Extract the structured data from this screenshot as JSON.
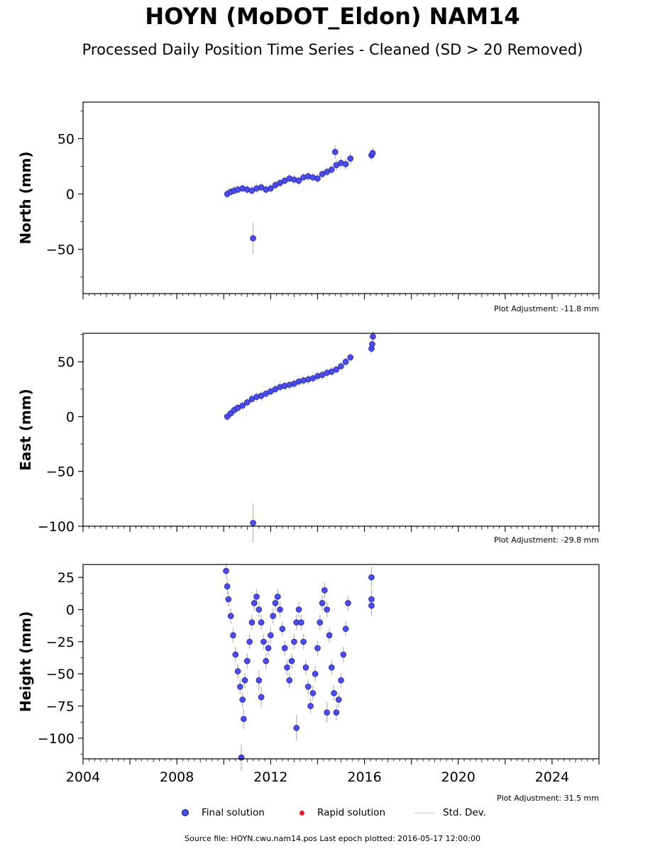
{
  "title": "HOYN (MoDOT_Eldon) NAM14",
  "subtitle": "Processed Daily Position Time Series - Cleaned (SD > 20 Removed)",
  "legend": {
    "final": "Final solution",
    "rapid": "Rapid solution",
    "std": "Std. Dev."
  },
  "footer": "Source file: HOYN.cwu.nam14.pos  Last epoch plotted: 2016-05-17 12:00:00",
  "colors": {
    "final": "#4b4bf2",
    "final_edge": "#1a1a5a",
    "rapid": "#e11d1d",
    "std": "#b5b5b5"
  },
  "chart_data": [
    {
      "type": "scatter",
      "ylabel": "North (mm)",
      "xlim": [
        2004,
        2026
      ],
      "ylim": [
        -90,
        83
      ],
      "yticks": [
        -50,
        0,
        50
      ],
      "ytick_labels": [
        "−50",
        "0",
        "50"
      ],
      "adjustment_label": "Plot Adjustment: -11.8 mm",
      "series": [
        {
          "name": "Final solution",
          "x": [
            2010.15,
            2010.3,
            2010.45,
            2010.6,
            2010.8,
            2011.0,
            2011.2,
            2011.4,
            2011.6,
            2011.8,
            2012.0,
            2012.2,
            2012.4,
            2012.6,
            2012.8,
            2013.0,
            2013.2,
            2013.4,
            2013.6,
            2013.8,
            2014.0,
            2014.2,
            2014.4,
            2014.6,
            2014.8,
            2015.0,
            2015.2,
            2015.4,
            2016.3,
            2016.35,
            2011.25,
            2014.75
          ],
          "y": [
            0,
            2,
            3,
            4,
            5,
            4,
            3,
            5,
            6,
            4,
            5,
            8,
            10,
            12,
            14,
            13,
            12,
            15,
            16,
            15,
            14,
            18,
            20,
            22,
            26,
            28,
            27,
            32,
            35,
            37,
            -40,
            38
          ],
          "err": [
            4,
            4,
            4,
            4,
            4,
            4,
            4,
            4,
            4,
            4,
            4,
            4,
            4,
            4,
            4,
            4,
            4,
            4,
            4,
            4,
            4,
            4,
            4,
            4,
            5,
            5,
            5,
            5,
            5,
            5,
            14,
            6
          ]
        }
      ]
    },
    {
      "type": "scatter",
      "ylabel": "East (mm)",
      "xlim": [
        2004,
        2026
      ],
      "ylim": [
        -100,
        76
      ],
      "yticks": [
        -100,
        -50,
        0,
        50
      ],
      "ytick_labels": [
        "−100",
        "−50",
        "0",
        "50"
      ],
      "adjustment_label": "Plot Adjustment: -29.8 mm",
      "series": [
        {
          "name": "Final solution",
          "x": [
            2010.15,
            2010.3,
            2010.45,
            2010.6,
            2010.8,
            2011.0,
            2011.2,
            2011.4,
            2011.6,
            2011.8,
            2012.0,
            2012.2,
            2012.4,
            2012.6,
            2012.8,
            2013.0,
            2013.2,
            2013.4,
            2013.6,
            2013.8,
            2014.0,
            2014.2,
            2014.4,
            2014.6,
            2014.8,
            2015.0,
            2015.2,
            2015.4,
            2016.3,
            2016.33,
            2016.36,
            2011.25
          ],
          "y": [
            0,
            3,
            6,
            8,
            10,
            13,
            16,
            18,
            19,
            21,
            23,
            25,
            27,
            28,
            29,
            30,
            32,
            33,
            34,
            35,
            37,
            38,
            40,
            41,
            43,
            46,
            50,
            54,
            62,
            66,
            73,
            -97
          ],
          "err": [
            4,
            4,
            4,
            4,
            4,
            4,
            4,
            4,
            4,
            4,
            4,
            4,
            4,
            4,
            4,
            4,
            4,
            4,
            4,
            4,
            4,
            4,
            4,
            4,
            4,
            4,
            4,
            4,
            5,
            5,
            5,
            18
          ]
        }
      ]
    },
    {
      "type": "scatter",
      "ylabel": "Height (mm)",
      "xlim": [
        2004,
        2026
      ],
      "ylim": [
        -116,
        35
      ],
      "yticks": [
        -100,
        -75,
        -50,
        -25,
        0,
        25
      ],
      "ytick_labels": [
        "−100",
        "−75",
        "−50",
        "−25",
        "0",
        "25"
      ],
      "xticks": [
        2004,
        2008,
        2012,
        2016,
        2020,
        2024
      ],
      "xtick_labels": [
        "2004",
        "2008",
        "2012",
        "2016",
        "2020",
        "2024"
      ],
      "adjustment_label": "Plot Adjustment: 31.5 mm",
      "series": [
        {
          "name": "Final solution",
          "x": [
            2010.1,
            2010.15,
            2010.2,
            2010.3,
            2010.4,
            2010.5,
            2010.6,
            2010.7,
            2010.8,
            2010.9,
            2011.0,
            2011.1,
            2011.2,
            2011.3,
            2011.4,
            2011.5,
            2011.6,
            2011.7,
            2011.8,
            2011.9,
            2012.0,
            2012.1,
            2012.2,
            2012.3,
            2012.4,
            2012.5,
            2012.6,
            2012.7,
            2012.8,
            2012.9,
            2013.0,
            2013.1,
            2013.2,
            2013.3,
            2013.4,
            2013.5,
            2013.6,
            2013.7,
            2013.8,
            2013.9,
            2014.0,
            2014.1,
            2014.2,
            2014.3,
            2014.4,
            2014.5,
            2014.6,
            2014.7,
            2014.8,
            2014.9,
            2015.0,
            2015.1,
            2015.2,
            2015.3,
            2010.75,
            2010.85,
            2011.5,
            2011.6,
            2013.1,
            2014.4,
            2016.3,
            2016.3,
            2016.3
          ],
          "y": [
            30,
            18,
            8,
            -5,
            -20,
            -35,
            -48,
            -60,
            -70,
            -55,
            -40,
            -25,
            -10,
            5,
            10,
            0,
            -10,
            -25,
            -40,
            -30,
            -20,
            -5,
            5,
            10,
            0,
            -15,
            -30,
            -45,
            -55,
            -40,
            -25,
            -10,
            0,
            -10,
            -25,
            -45,
            -60,
            -75,
            -65,
            -50,
            -30,
            -10,
            5,
            15,
            0,
            -20,
            -45,
            -65,
            -80,
            -70,
            -55,
            -35,
            -15,
            5,
            -115,
            -85,
            -55,
            -68,
            -92,
            -80,
            25,
            8,
            3
          ],
          "err": [
            6,
            6,
            6,
            6,
            6,
            6,
            6,
            6,
            6,
            6,
            6,
            6,
            6,
            6,
            6,
            6,
            6,
            6,
            6,
            6,
            6,
            6,
            6,
            6,
            6,
            6,
            6,
            6,
            6,
            6,
            6,
            6,
            6,
            6,
            6,
            6,
            6,
            6,
            6,
            6,
            6,
            6,
            6,
            6,
            6,
            6,
            6,
            6,
            6,
            6,
            6,
            6,
            6,
            6,
            10,
            8,
            8,
            8,
            10,
            8,
            8,
            8,
            8
          ]
        }
      ]
    }
  ]
}
